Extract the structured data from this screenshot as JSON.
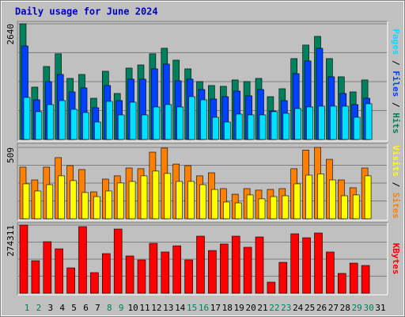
{
  "chart_data": [
    {
      "type": "bar",
      "title": "Daily usage for June 2024",
      "ylim": [
        0,
        2640
      ],
      "yticks": [
        2640
      ],
      "grid": true,
      "series": [
        {
          "name": "Hits",
          "color": "#00805c",
          "values": [
            2640,
            1195,
            1665,
            1955,
            1394,
            1484,
            941,
            1557,
            1050,
            1629,
            1701,
            1955,
            2081,
            1810,
            1611,
            1321,
            1231,
            1213,
            1358,
            1321,
            1394,
            977,
            1158,
            1846,
            2154,
            2353,
            1846,
            1430,
            1086,
            1358,
            null
          ]
        },
        {
          "name": "Files",
          "color": "#0040ff",
          "values": [
            2134,
            905,
            1321,
            1484,
            1086,
            1177,
            724,
            1231,
            887,
            1376,
            1376,
            1611,
            1720,
            1339,
            1376,
            1140,
            923,
            977,
            1104,
            996,
            1140,
            652,
            887,
            1502,
            1792,
            2081,
            1430,
            1050,
            796,
            941,
            null
          ]
        },
        {
          "name": "Pages",
          "color": "#00e0ff",
          "values": [
            960,
            634,
            796,
            887,
            688,
            615,
            398,
            869,
            561,
            851,
            561,
            742,
            796,
            742,
            977,
            905,
            507,
            398,
            579,
            561,
            561,
            634,
            597,
            706,
            742,
            760,
            760,
            760,
            507,
            815,
            null
          ]
        }
      ]
    },
    {
      "type": "bar",
      "ylim": [
        0,
        509
      ],
      "yticks": [
        509
      ],
      "grid": true,
      "series": [
        {
          "name": "Sites",
          "color": "#ff8000",
          "values": [
            368,
            277,
            368,
            436,
            379,
            351,
            192,
            283,
            306,
            362,
            357,
            475,
            504,
            390,
            379,
            306,
            328,
            215,
            175,
            215,
            204,
            209,
            215,
            357,
            490,
            509,
            424,
            277,
            221,
            362,
            null
          ]
        },
        {
          "name": "Visits",
          "color": "#ffff00",
          "values": [
            249,
            198,
            243,
            306,
            272,
            187,
            158,
            198,
            255,
            266,
            306,
            340,
            323,
            266,
            266,
            243,
            209,
            119,
            113,
            170,
            142,
            158,
            164,
            249,
            311,
            320,
            277,
            164,
            170,
            306,
            null
          ]
        }
      ]
    },
    {
      "type": "bar",
      "ylim": [
        0,
        274311
      ],
      "yticks": [
        274311
      ],
      "grid": true,
      "categories": [
        "1",
        "2",
        "3",
        "4",
        "5",
        "6",
        "7",
        "8",
        "9",
        "10",
        "11",
        "12",
        "13",
        "14",
        "15",
        "16",
        "17",
        "18",
        "19",
        "20",
        "21",
        "22",
        "23",
        "24",
        "25",
        "26",
        "27",
        "28",
        "29",
        "30",
        "31"
      ],
      "category_colors": [
        "#00805c",
        "#00805c",
        "#000000",
        "#000000",
        "#000000",
        "#000000",
        "#000000",
        "#00805c",
        "#00805c",
        "#000000",
        "#000000",
        "#000000",
        "#000000",
        "#000000",
        "#00805c",
        "#00805c",
        "#000000",
        "#000000",
        "#000000",
        "#000000",
        "#000000",
        "#00805c",
        "#00805c",
        "#000000",
        "#000000",
        "#000000",
        "#000000",
        "#000000",
        "#00805c",
        "#00805c",
        "#000000"
      ],
      "series": [
        {
          "name": "KBytes",
          "color": "#ff0000",
          "values": [
            274311,
            130800,
            207400,
            178700,
            102100,
            268000,
            83000,
            159500,
            258400,
            150000,
            134000,
            201000,
            166000,
            191000,
            134000,
            229700,
            172000,
            198000,
            229700,
            185000,
            226500,
            44700,
            124400,
            239300,
            223300,
            242400,
            166000,
            79800,
            121200,
            111700,
            null
          ]
        }
      ]
    }
  ]
}
